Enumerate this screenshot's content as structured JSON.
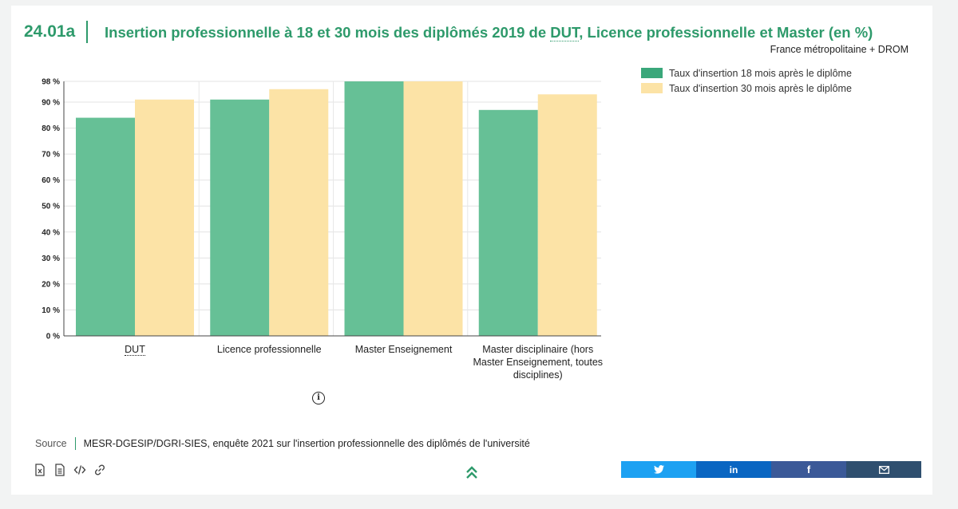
{
  "header": {
    "figure_id": "24.01a",
    "title_before": "Insertion professionnelle à 18 et 30 mois des diplômés 2019 de ",
    "title_abbr": "DUT",
    "title_after": ", Licence professionnelle et Master (en %)",
    "subtitle": "France métropolitaine + DROM"
  },
  "chart_data": {
    "type": "bar",
    "title": "Insertion professionnelle à 18 et 30 mois des diplômés 2019 de DUT, Licence professionnelle et Master (en %)",
    "categories": [
      "DUT",
      "Licence professionnelle",
      "Master Enseignement",
      "Master disciplinaire (hors Master Enseignement, toutes disciplines)"
    ],
    "category_label_lines": [
      [
        "DUT"
      ],
      [
        "Licence professionnelle"
      ],
      [
        "Master Enseignement"
      ],
      [
        "Master disciplinaire (hors",
        "Master Enseignement, toutes",
        "disciplines)"
      ]
    ],
    "series": [
      {
        "name": "Taux d'insertion 18 mois après le diplôme",
        "color": "#66c096",
        "values": [
          84,
          91,
          98,
          87
        ]
      },
      {
        "name": "Taux d'insertion 30 mois après le diplôme",
        "color": "#fce3a6",
        "values": [
          91,
          95,
          98,
          93
        ]
      }
    ],
    "ylim": [
      0,
      98
    ],
    "yticks": [
      0,
      10,
      20,
      30,
      40,
      50,
      60,
      70,
      80,
      90,
      98
    ],
    "ytick_labels": [
      "0 %",
      "10 %",
      "20 %",
      "30 %",
      "40 %",
      "50 %",
      "60 %",
      "70 %",
      "80 %",
      "90 %",
      "98 %"
    ],
    "legend_position": "top-right",
    "grid": true
  },
  "legend": {
    "items": [
      {
        "label": "Taux d'insertion 18 mois après le diplôme",
        "color": "#3aa77a"
      },
      {
        "label": "Taux d'insertion 30 mois après le diplôme",
        "color": "#fce3a6"
      }
    ]
  },
  "source": {
    "label": "Source",
    "text": "MESR-DGESIP/DGRI-SIES, enquête 2021 sur l'insertion professionnelle des diplômés de l'université"
  },
  "tools": [
    "excel-icon",
    "document-icon",
    "embed-code-icon",
    "link-icon"
  ],
  "share": [
    {
      "name": "twitter",
      "icon": "twitter-icon",
      "color": "#1da1f2"
    },
    {
      "name": "linkedin",
      "icon": "linkedin-icon",
      "color": "#0a66c2"
    },
    {
      "name": "facebook",
      "icon": "facebook-icon",
      "color": "#3b5998"
    },
    {
      "name": "email",
      "icon": "email-icon",
      "color": "#2f4f6f"
    }
  ]
}
